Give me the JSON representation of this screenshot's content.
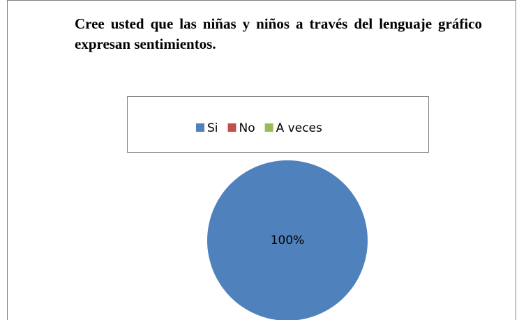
{
  "chart_data": {
    "type": "pie",
    "title": "Cree usted que las niñas y niños a través del lenguaje gráfico expresan sentimientos.",
    "categories": [
      "Si",
      "No",
      "A veces"
    ],
    "values": [
      100,
      0,
      0
    ],
    "value_labels": [
      "100%",
      null,
      null
    ],
    "colors": [
      "#4f81bd",
      "#c0504d",
      "#9bbb59"
    ],
    "legend": "top"
  }
}
